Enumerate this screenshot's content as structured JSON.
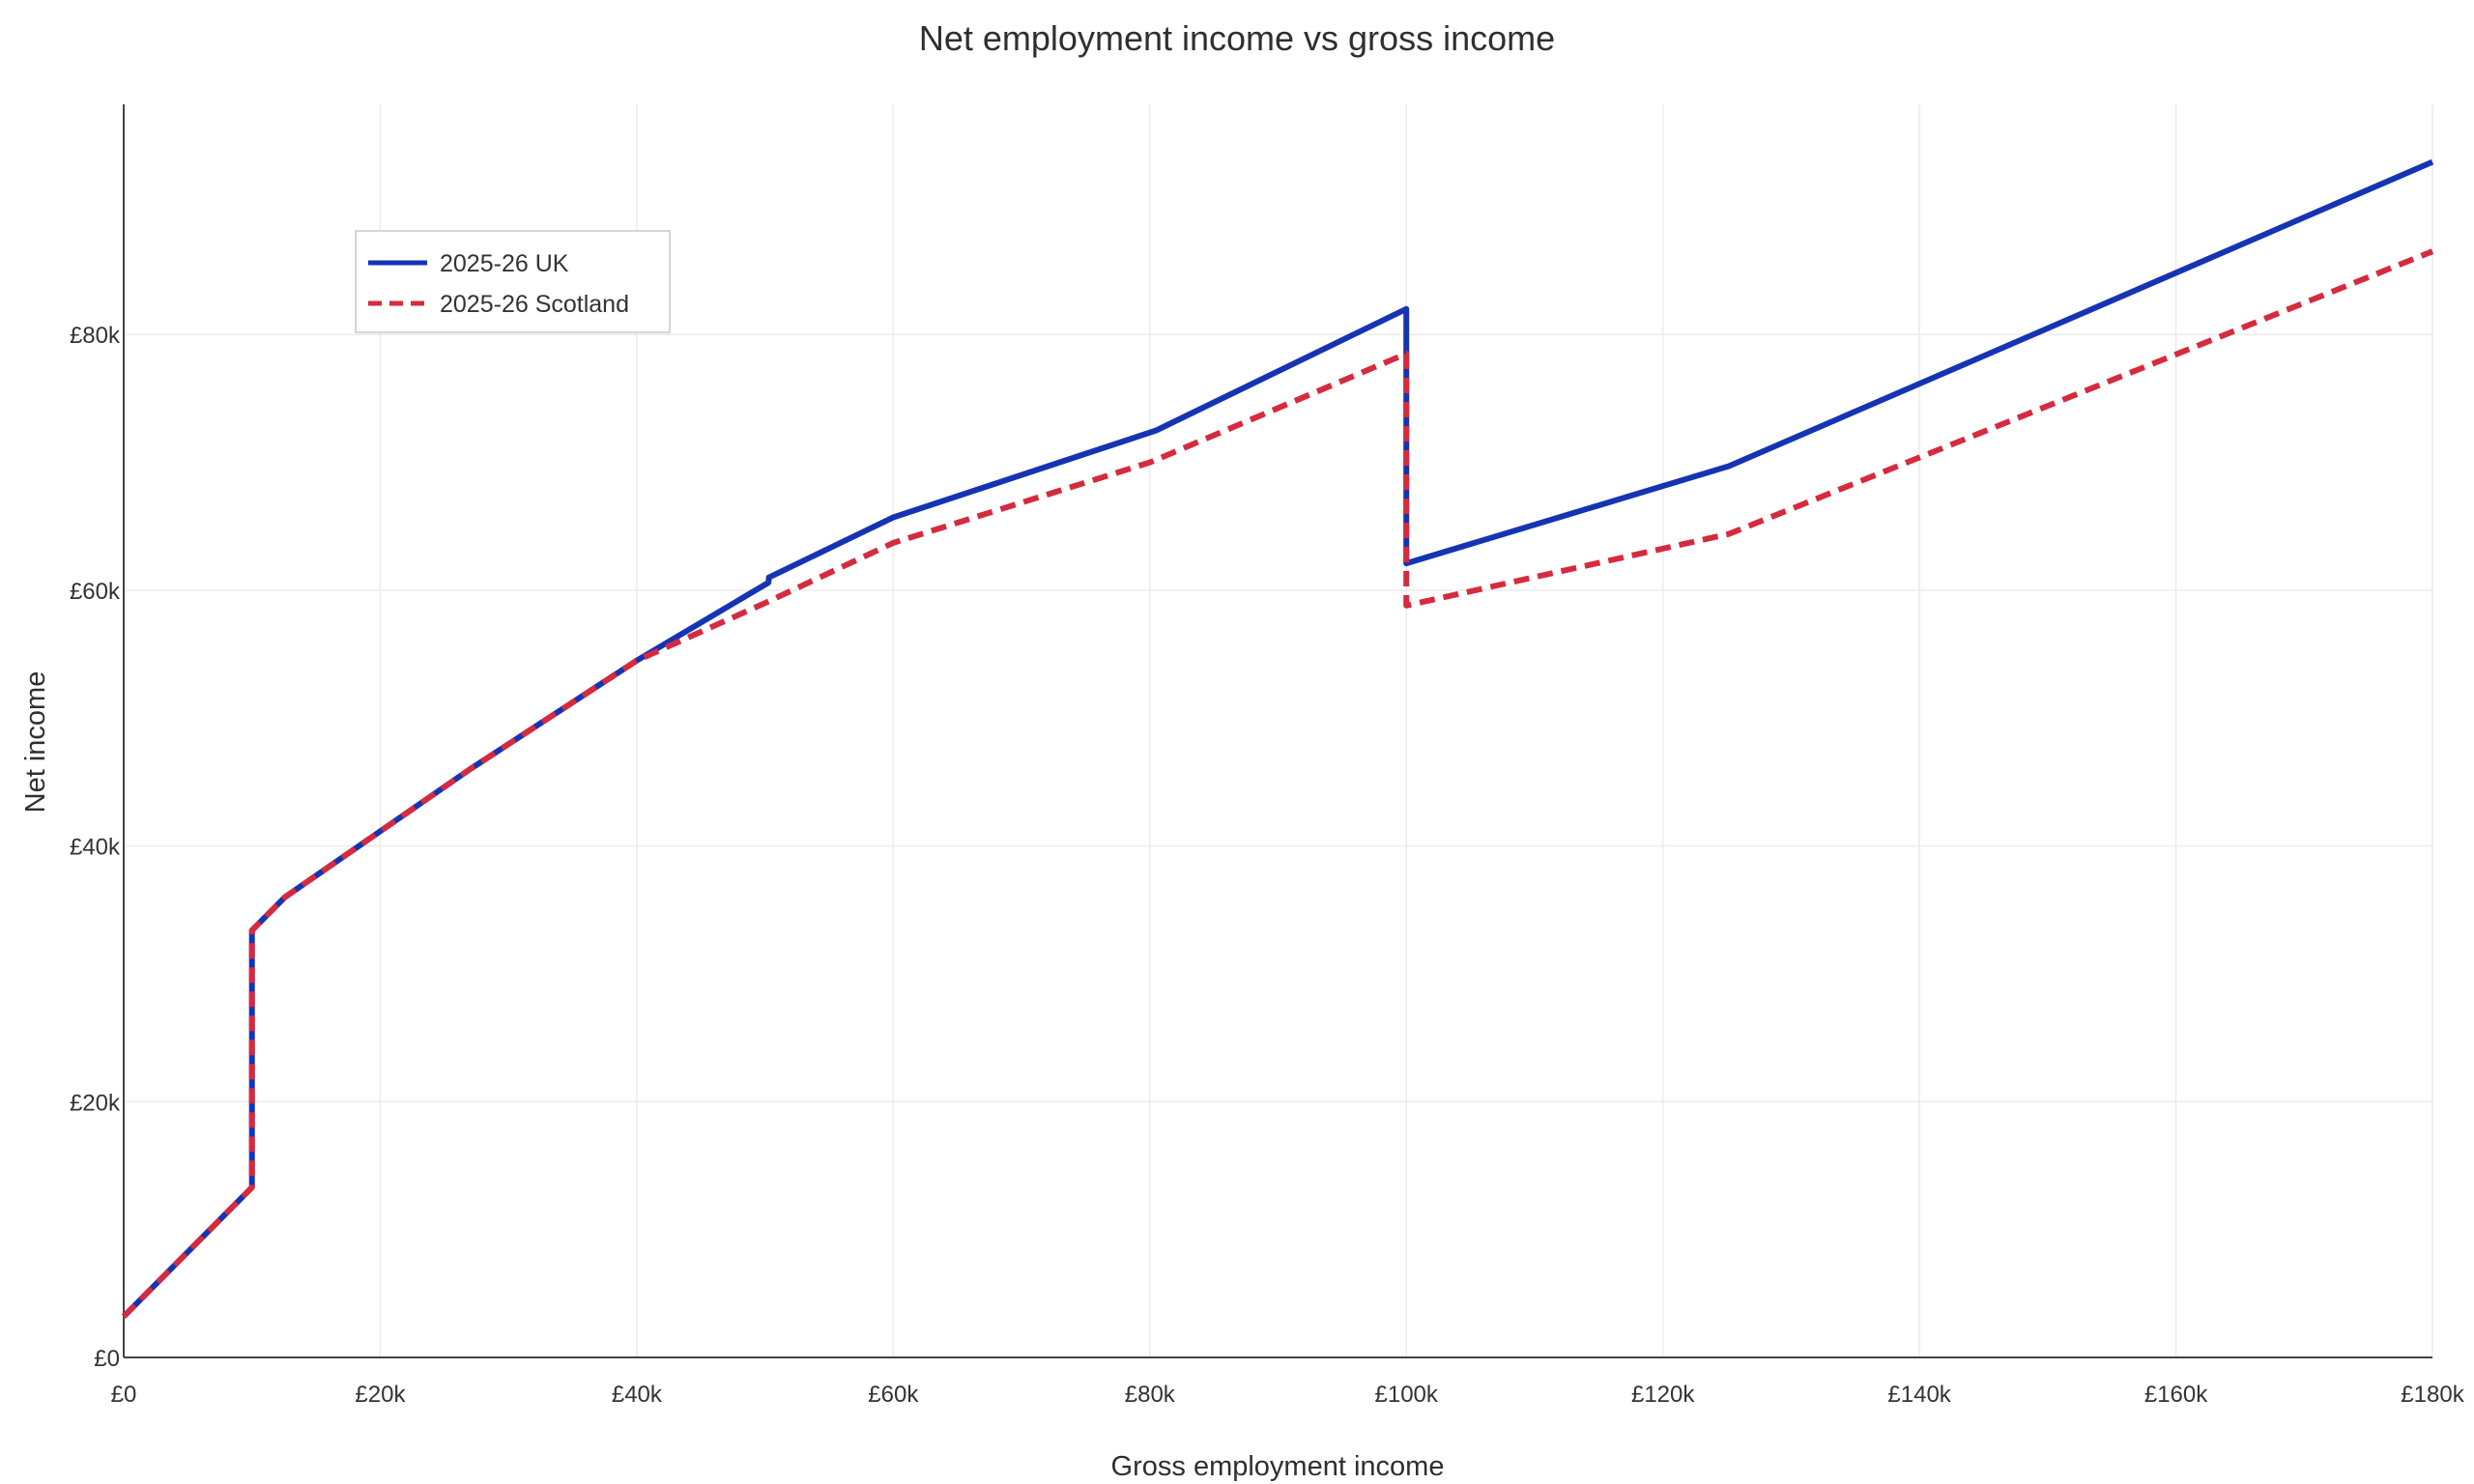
{
  "chart_data": {
    "type": "line",
    "title": "Net employment income vs gross income",
    "xlabel": "Gross employment income",
    "ylabel": "Net income",
    "xlim": [
      0,
      180000
    ],
    "ylim": [
      0,
      98000
    ],
    "x_ticks": [
      0,
      20000,
      40000,
      60000,
      80000,
      100000,
      120000,
      140000,
      160000,
      180000
    ],
    "x_tick_labels": [
      "£0",
      "£20k",
      "£40k",
      "£60k",
      "£80k",
      "£100k",
      "£120k",
      "£140k",
      "£160k",
      "£180k"
    ],
    "y_ticks": [
      0,
      20000,
      40000,
      60000,
      80000
    ],
    "y_tick_labels": [
      "£0",
      "£20k",
      "£40k",
      "£60k",
      "£80k"
    ],
    "grid": true,
    "legend_position": "top-left",
    "series": [
      {
        "name": "2025-26 UK",
        "color": "#1534b4",
        "dash": "solid",
        "points": [
          [
            0,
            3200
          ],
          [
            10000,
            13300
          ],
          [
            10000,
            33400
          ],
          [
            12570,
            36000
          ],
          [
            27000,
            46000
          ],
          [
            40000,
            54500
          ],
          [
            50270,
            60600
          ],
          [
            50300,
            61000
          ],
          [
            60000,
            65700
          ],
          [
            80500,
            72500
          ],
          [
            100000,
            82000
          ],
          [
            100000,
            62100
          ],
          [
            125140,
            69700
          ],
          [
            180000,
            93500
          ]
        ]
      },
      {
        "name": "2025-26 Scotland",
        "color": "#d62a3e",
        "dash": "dashed",
        "points": [
          [
            0,
            3200
          ],
          [
            10000,
            13300
          ],
          [
            10000,
            33400
          ],
          [
            12570,
            36000
          ],
          [
            27000,
            46000
          ],
          [
            40000,
            54500
          ],
          [
            50000,
            59000
          ],
          [
            60000,
            63700
          ],
          [
            80000,
            70000
          ],
          [
            100000,
            78500
          ],
          [
            100000,
            58800
          ],
          [
            125140,
            64400
          ],
          [
            180000,
            86500
          ]
        ]
      }
    ]
  }
}
